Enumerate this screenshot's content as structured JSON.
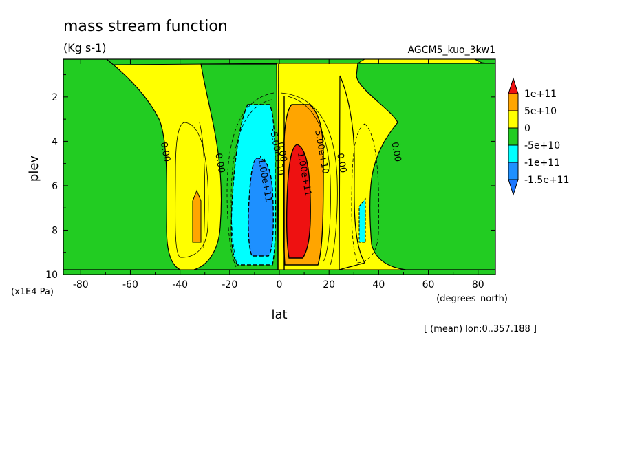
{
  "chart_data": {
    "type": "contour",
    "title": "mass stream function",
    "units": "(Kg s-1)",
    "run_name": "AGCM5_kuo_3kw1",
    "xlabel": "lat",
    "xunits": "(degrees_north)",
    "ylabel": "plev",
    "yunits": "(x1E4 Pa)",
    "note": "[ (mean) lon:0..357.188 ]",
    "xlim": [
      -87,
      87
    ],
    "ylim": [
      10,
      0.3
    ],
    "xticks": [
      -80,
      -60,
      -40,
      -20,
      0,
      20,
      40,
      60,
      80
    ],
    "yticks": [
      2,
      4,
      6,
      8,
      10
    ],
    "colorbar": {
      "levels": [
        "1e+11",
        "5e+10",
        "0",
        "-5e+10",
        "-1e+11",
        "-1.5e+11"
      ],
      "bands": [
        {
          "range": "> 1e+11",
          "color": "#ee1111"
        },
        {
          "range": "5e+10 to 1e+11",
          "color": "#ffa500"
        },
        {
          "range": "0 to 5e+10",
          "color": "#ffff00"
        },
        {
          "range": "-5e+10 to 0",
          "color": "#22cc22"
        },
        {
          "range": "-1e+11 to -5e+10",
          "color": "#00ffff"
        },
        {
          "range": "-1.5e+11 to -1e+11",
          "color": "#1e90ff"
        },
        {
          "range": "< -1.5e+11",
          "color": "#1e78ff"
        }
      ]
    },
    "contour_labels": [
      {
        "lat": -47,
        "plev": 4.5,
        "text": "0.00"
      },
      {
        "lat": -25,
        "plev": 5,
        "text": "0.00"
      },
      {
        "lat": 0,
        "plev": 4.5,
        "text": "0.00"
      },
      {
        "lat": -2,
        "plev": 4.5,
        "text": "-5.00e+10"
      },
      {
        "lat": -7,
        "plev": 5.7,
        "text": "-1.00e+11"
      },
      {
        "lat": 9,
        "plev": 5.5,
        "text": "1.00e+11"
      },
      {
        "lat": 16,
        "plev": 4.5,
        "text": "5.00e+10"
      },
      {
        "lat": 24,
        "plev": 5,
        "text": "0.00"
      },
      {
        "lat": 46,
        "plev": 4.5,
        "text": "0.00"
      }
    ]
  }
}
